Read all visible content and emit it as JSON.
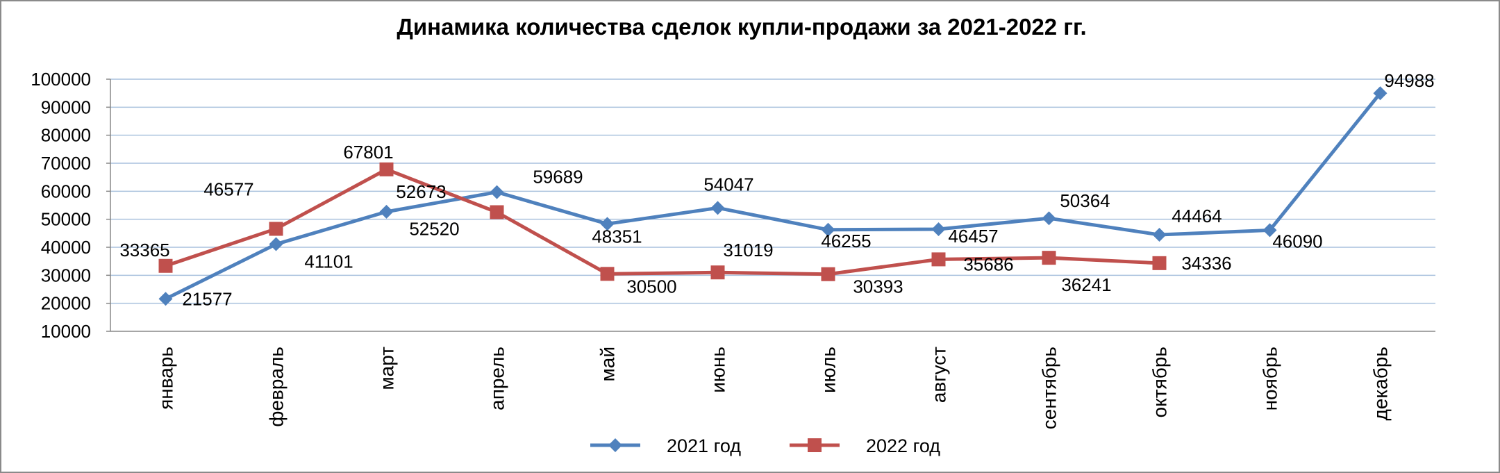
{
  "chart_data": {
    "type": "line",
    "title": "Динамика количества сделок купли-продажи за 2021-2022 гг.",
    "xlabel": "",
    "ylabel": "",
    "ylim": [
      10000,
      100000
    ],
    "ytick_step": 10000,
    "grid": true,
    "legend_position": "bottom",
    "categories": [
      "январь",
      "февраль",
      "март",
      "апрель",
      "май",
      "июнь",
      "июль",
      "август",
      "сентябрь",
      "октябрь",
      "ноябрь",
      "декабрь"
    ],
    "series": [
      {
        "name": "2021 год",
        "color": "#4f81bd",
        "marker": "diamond",
        "values": [
          21577,
          41101,
          52673,
          59689,
          48351,
          54047,
          46255,
          46457,
          50364,
          44464,
          46090,
          94988
        ]
      },
      {
        "name": "2022 год",
        "color": "#c0504d",
        "marker": "square",
        "values": [
          33365,
          46577,
          67801,
          52520,
          30500,
          31019,
          30393,
          35686,
          36241,
          34336,
          null,
          null
        ]
      }
    ]
  }
}
